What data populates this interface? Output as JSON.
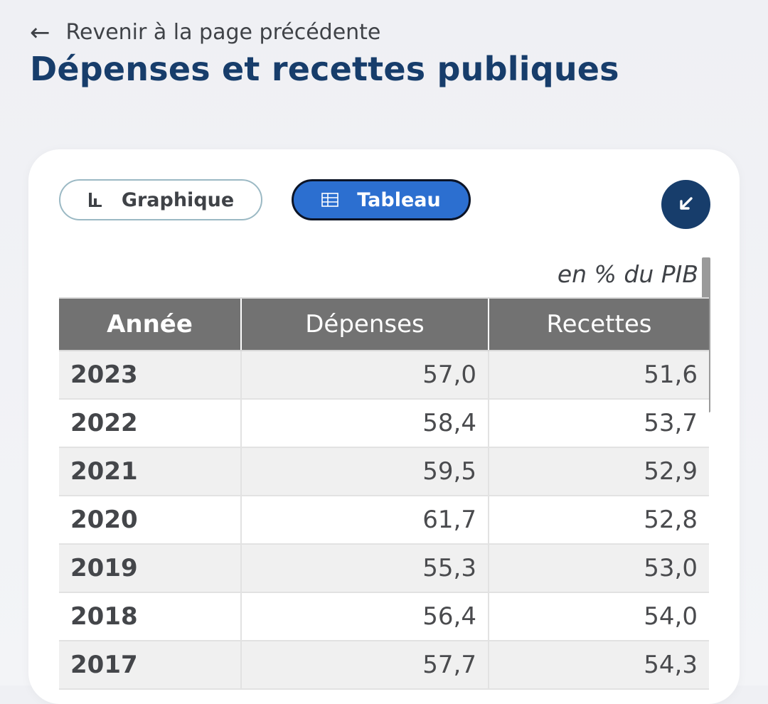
{
  "header": {
    "back_label": "Revenir à la page précédente",
    "title": "Dépenses et recettes publiques"
  },
  "toolbar": {
    "graph_label": "Graphique",
    "table_label": "Tableau",
    "active_view": "table"
  },
  "table": {
    "unit_note": "en % du PIB",
    "columns": [
      "Année",
      "Dépenses",
      "Recettes"
    ],
    "rows": [
      {
        "year": "2023",
        "depenses": "57,0",
        "recettes": "51,6"
      },
      {
        "year": "2022",
        "depenses": "58,4",
        "recettes": "53,7"
      },
      {
        "year": "2021",
        "depenses": "59,5",
        "recettes": "52,9"
      },
      {
        "year": "2020",
        "depenses": "61,7",
        "recettes": "52,8"
      },
      {
        "year": "2019",
        "depenses": "55,3",
        "recettes": "53,0"
      },
      {
        "year": "2018",
        "depenses": "56,4",
        "recettes": "54,0"
      },
      {
        "year": "2017",
        "depenses": "57,7",
        "recettes": "54,3"
      }
    ]
  },
  "icons": {
    "back": "arrow-left-icon",
    "graph": "bar-chart-icon",
    "table": "table-grid-icon",
    "collapse": "arrow-down-left-icon"
  },
  "colors": {
    "title": "#173d6b",
    "active_toggle": "#2c6fd0",
    "collapse_button": "#173d6b",
    "table_header": "#727272"
  }
}
